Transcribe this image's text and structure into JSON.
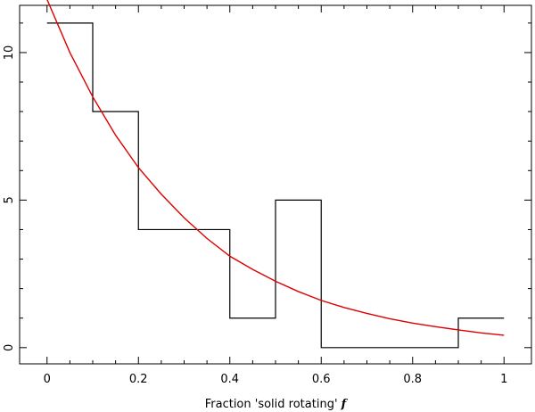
{
  "chart_data": {
    "type": "line",
    "title": "",
    "xlabel": "Fraction 'solid rotating' ",
    "xlabel_var": "f",
    "ylabel": "",
    "xlim": [
      -0.06,
      1.06
    ],
    "ylim": [
      -0.55,
      11.6
    ],
    "xticks": [
      0,
      0.2,
      0.4,
      0.6,
      0.8,
      1
    ],
    "xtick_labels": [
      "0",
      "0.2",
      "0.4",
      "0.6",
      "0.8",
      "1"
    ],
    "xticks_minor": [
      0.05,
      0.1,
      0.15,
      0.25,
      0.3,
      0.35,
      0.45,
      0.5,
      0.55,
      0.65,
      0.7,
      0.75,
      0.85,
      0.9,
      0.95
    ],
    "yticks": [
      0,
      5,
      10
    ],
    "ytick_labels": [
      "0",
      "5",
      "10"
    ],
    "yticks_minor": [
      1,
      2,
      3,
      4,
      6,
      7,
      8,
      9,
      11
    ],
    "grid": false,
    "series": [
      {
        "kind": "histogram",
        "color": "#000000",
        "bin_edges": [
          0,
          0.1,
          0.2,
          0.3,
          0.4,
          0.5,
          0.6,
          0.7,
          0.8,
          0.9,
          1.0
        ],
        "counts": [
          11,
          8,
          4,
          4,
          1,
          5,
          0,
          0,
          0,
          1
        ]
      },
      {
        "kind": "curve",
        "color": "#dd0000",
        "x": [
          0,
          0.05,
          0.1,
          0.15,
          0.2,
          0.25,
          0.3,
          0.35,
          0.4,
          0.45,
          0.5,
          0.55,
          0.6,
          0.65,
          0.7,
          0.75,
          0.8,
          0.85,
          0.9,
          0.95,
          1.0
        ],
        "y": [
          11.8,
          10.0,
          8.5,
          7.2,
          6.1,
          5.2,
          4.4,
          3.7,
          3.1,
          2.65,
          2.25,
          1.9,
          1.6,
          1.36,
          1.16,
          0.98,
          0.83,
          0.71,
          0.6,
          0.5,
          0.42
        ]
      }
    ]
  }
}
